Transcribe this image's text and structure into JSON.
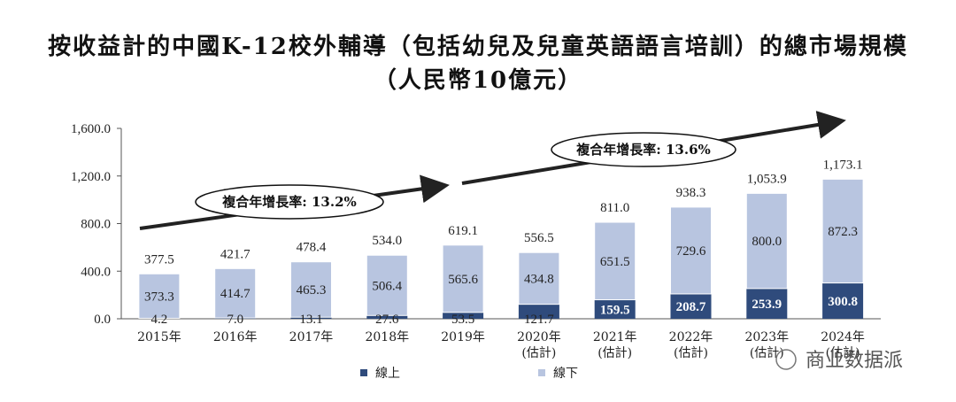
{
  "title_line1": "按收益計的中國K-12校外輔導（包括幼兒及兒童英語語言培訓）的總市場規模",
  "title_line2": "（人民幣10億元）",
  "watermark": "商业数据派",
  "colors": {
    "online": "#2f4b7c",
    "offline": "#b8c5e0",
    "axis": "#555555",
    "arrow": "#222222"
  },
  "chart_data": {
    "type": "bar",
    "stacked": true,
    "categories": [
      "2015年",
      "2016年",
      "2017年",
      "2018年",
      "2019年",
      "2020年\n(估計)",
      "2021年\n(估計)",
      "2022年\n(估計)",
      "2023年\n(估計)",
      "2024年\n(估計)"
    ],
    "series": [
      {
        "name": "線上",
        "values": [
          4.2,
          7.0,
          13.1,
          27.6,
          53.5,
          121.7,
          159.5,
          208.7,
          253.9,
          300.8
        ]
      },
      {
        "name": "線下",
        "values": [
          373.3,
          414.7,
          465.3,
          506.4,
          565.6,
          434.8,
          651.5,
          729.6,
          800.0,
          872.3
        ]
      }
    ],
    "totals": [
      377.5,
      421.7,
      478.4,
      534.0,
      619.1,
      556.5,
      811.0,
      938.3,
      1053.9,
      1173.1
    ],
    "ylim": [
      0,
      1600
    ],
    "yticks": [
      "0.0",
      "400.0",
      "800.0",
      "1,200.0",
      "1,600.0"
    ],
    "legend_position": "bottom",
    "annotations": [
      {
        "text": "複合年增長率: 13.2%",
        "period": "2015-2019"
      },
      {
        "text": "複合年增長率: 13.6%",
        "period": "2019-2024"
      }
    ]
  }
}
